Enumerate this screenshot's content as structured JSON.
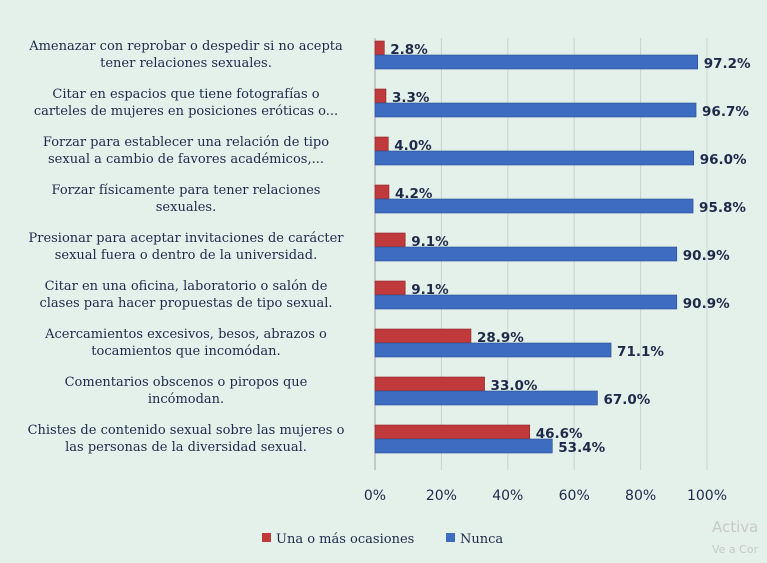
{
  "chart_data": {
    "type": "bar",
    "orientation": "horizontal",
    "categories": [
      [
        "Amenazar con reprobar o despedir si no acepta",
        "tener relaciones sexuales."
      ],
      [
        "Citar en espacios que tiene fotografías o",
        "carteles de mujeres en posiciones eróticas o..."
      ],
      [
        "Forzar para establecer una relación de tipo",
        "sexual a cambio de favores académicos,..."
      ],
      [
        "Forzar físicamente para tener relaciones",
        "sexuales."
      ],
      [
        "Presionar para aceptar invitaciones de carácter",
        "sexual fuera o dentro de la universidad."
      ],
      [
        "Citar en una oficina,  laboratorio o salón de",
        "clases para hacer propuestas de tipo sexual."
      ],
      [
        "Acercamientos excesivos, besos, abrazos o",
        "tocamientos que incomódan."
      ],
      [
        "Comentarios obscenos o piropos que",
        "incómodan."
      ],
      [
        "Chistes de contenido sexual sobre las mujeres o",
        "las personas de la diversidad sexual."
      ]
    ],
    "series": [
      {
        "name": "Una o más ocasiones",
        "color": "#c0393b",
        "values": [
          2.8,
          3.3,
          4.0,
          4.2,
          9.1,
          9.1,
          28.9,
          33.0,
          46.6
        ],
        "labels": [
          "2.8%",
          "3.3%",
          "4.0%",
          "4.2%",
          "9.1%",
          "9.1%",
          "28.9%",
          "33.0%",
          "46.6%"
        ]
      },
      {
        "name": "Nunca",
        "color": "#3e6cc0",
        "values": [
          97.2,
          96.7,
          96.0,
          95.8,
          90.9,
          90.9,
          71.1,
          67.0,
          53.4
        ],
        "labels": [
          "97.2%",
          "96.7%",
          "96.0%",
          "95.8%",
          "90.9%",
          "90.9%",
          "71.1%",
          "67.0%",
          "53.4%"
        ]
      }
    ],
    "xlim": [
      0,
      100
    ],
    "xticks": [
      "0%",
      "20%",
      "40%",
      "60%",
      "80%",
      "100%"
    ],
    "grid": true,
    "legend_position": "bottom"
  },
  "watermark": {
    "line1": "Activa",
    "line2": "Ve a Cor"
  }
}
